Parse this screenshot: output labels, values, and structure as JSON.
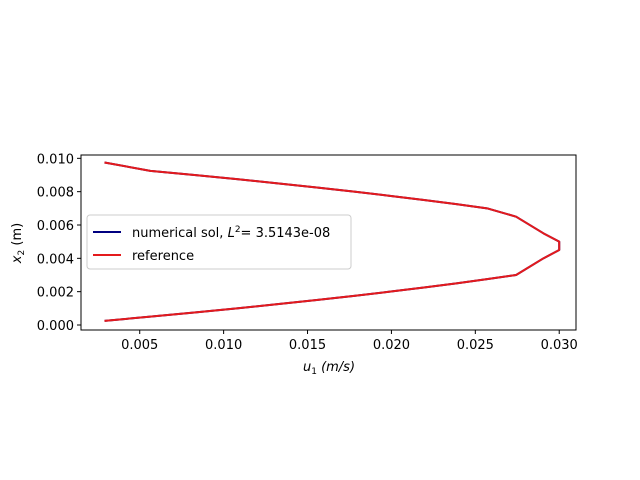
{
  "chart_data": {
    "type": "line",
    "xlabel_var": "u",
    "xlabel_sub": "1",
    "xlabel_unit": " (m/s)",
    "ylabel_var": "x",
    "ylabel_sub": "2",
    "ylabel_unit": " (m)",
    "xlim": [
      0.0015,
      0.031
    ],
    "ylim": [
      -0.0003,
      0.0102
    ],
    "xticks": [
      0.005,
      0.01,
      0.015,
      0.02,
      0.025,
      0.03
    ],
    "xtick_labels": [
      "0.005",
      "0.010",
      "0.015",
      "0.020",
      "0.025",
      "0.030"
    ],
    "yticks": [
      0.0,
      0.002,
      0.004,
      0.006,
      0.008,
      0.01
    ],
    "ytick_labels": [
      "0.000",
      "0.002",
      "0.004",
      "0.006",
      "0.008",
      "0.010"
    ],
    "grid": false,
    "legend_position": "center-left",
    "series": [
      {
        "name_prefix": "numerical sol, ",
        "name_var": "L",
        "name_sup": "2",
        "name_suffix": "= 3.5143e-08",
        "color": "#000080",
        "x": [
          0.0029,
          0.00563,
          0.00826,
          0.01079,
          0.01322,
          0.01555,
          0.01778,
          0.01991,
          0.02194,
          0.02387,
          0.0257,
          0.02743,
          0.02906,
          0.03,
          0.03,
          0.02906,
          0.02743,
          0.0257,
          0.02387,
          0.02194,
          0.01991,
          0.01778,
          0.01555,
          0.01322,
          0.01079,
          0.00826,
          0.00563,
          0.0029
        ],
        "y": [
          0.00025,
          0.0005,
          0.00075,
          0.001,
          0.00125,
          0.0015,
          0.00175,
          0.002,
          0.00225,
          0.0025,
          0.00275,
          0.003,
          0.004,
          0.0045,
          0.005,
          0.0055,
          0.0065,
          0.007,
          0.00725,
          0.0075,
          0.00775,
          0.008,
          0.00825,
          0.0085,
          0.00875,
          0.009,
          0.00925,
          0.00975
        ]
      },
      {
        "name": "reference",
        "color": "#e41a1c",
        "x": [
          0.0029,
          0.00563,
          0.00826,
          0.01079,
          0.01322,
          0.01555,
          0.01778,
          0.01991,
          0.02194,
          0.02387,
          0.0257,
          0.02743,
          0.02906,
          0.03,
          0.03,
          0.02906,
          0.02743,
          0.0257,
          0.02387,
          0.02194,
          0.01991,
          0.01778,
          0.01555,
          0.01322,
          0.01079,
          0.00826,
          0.00563,
          0.0029
        ],
        "y": [
          0.00025,
          0.0005,
          0.00075,
          0.001,
          0.00125,
          0.0015,
          0.00175,
          0.002,
          0.00225,
          0.0025,
          0.00275,
          0.003,
          0.004,
          0.0045,
          0.005,
          0.0055,
          0.0065,
          0.007,
          0.00725,
          0.0075,
          0.00775,
          0.008,
          0.00825,
          0.0085,
          0.00875,
          0.009,
          0.00925,
          0.00975
        ]
      }
    ]
  }
}
